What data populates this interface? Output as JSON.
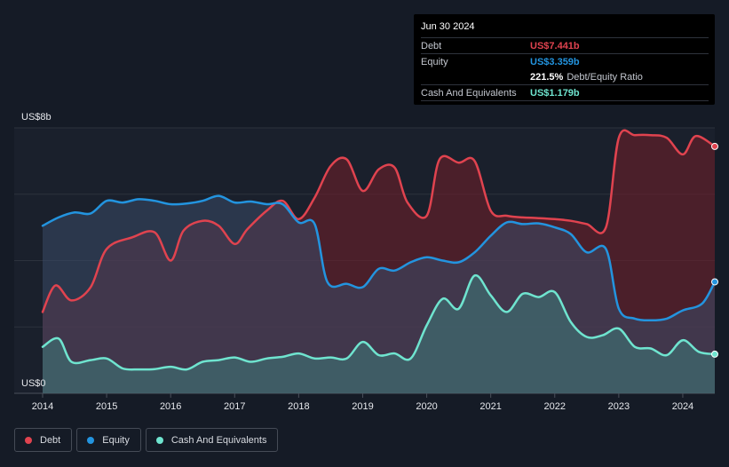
{
  "tooltip": {
    "date": "Jun 30 2024",
    "debt_label": "Debt",
    "debt_value": "US$7.441b",
    "equity_label": "Equity",
    "equity_value": "US$3.359b",
    "ratio_value": "221.5%",
    "ratio_label": "Debt/Equity Ratio",
    "cash_label": "Cash And Equivalents",
    "cash_value": "US$1.179b"
  },
  "legend": {
    "debt": "Debt",
    "equity": "Equity",
    "cash": "Cash And Equivalents"
  },
  "colors": {
    "debt": "#e0434f",
    "equity": "#2394df",
    "cash": "#6fe4cf"
  },
  "chart_data": {
    "type": "area",
    "title": "",
    "xlabel": "",
    "ylabel": "",
    "y_top_label": "US$8b",
    "y_bottom_label": "US$0",
    "ylim": [
      0,
      8
    ],
    "xlim": [
      2014,
      2024.5
    ],
    "x_ticks": [
      2014,
      2015,
      2016,
      2017,
      2018,
      2019,
      2020,
      2021,
      2022,
      2023,
      2024
    ],
    "x_tick_labels": [
      "2014",
      "2015",
      "2016",
      "2017",
      "2018",
      "2019",
      "2020",
      "2021",
      "2022",
      "2023",
      "2024"
    ],
    "grid": true,
    "legend_position": "bottom-left",
    "series": [
      {
        "name": "Debt",
        "points": [
          [
            2014.0,
            2.45
          ],
          [
            2014.2,
            3.25
          ],
          [
            2014.45,
            2.8
          ],
          [
            2014.75,
            3.2
          ],
          [
            2015.0,
            4.35
          ],
          [
            2015.4,
            4.7
          ],
          [
            2015.75,
            4.85
          ],
          [
            2016.0,
            4.0
          ],
          [
            2016.2,
            4.9
          ],
          [
            2016.5,
            5.2
          ],
          [
            2016.75,
            5.05
          ],
          [
            2017.0,
            4.5
          ],
          [
            2017.2,
            4.95
          ],
          [
            2017.5,
            5.5
          ],
          [
            2017.75,
            5.8
          ],
          [
            2018.0,
            5.25
          ],
          [
            2018.25,
            5.9
          ],
          [
            2018.5,
            6.85
          ],
          [
            2018.75,
            7.05
          ],
          [
            2019.0,
            6.1
          ],
          [
            2019.25,
            6.75
          ],
          [
            2019.5,
            6.8
          ],
          [
            2019.7,
            5.75
          ],
          [
            2020.0,
            5.35
          ],
          [
            2020.2,
            7.05
          ],
          [
            2020.5,
            6.95
          ],
          [
            2020.75,
            7.0
          ],
          [
            2021.0,
            5.5
          ],
          [
            2021.25,
            5.35
          ],
          [
            2021.5,
            5.3
          ],
          [
            2021.75,
            5.28
          ],
          [
            2022.0,
            5.25
          ],
          [
            2022.25,
            5.2
          ],
          [
            2022.5,
            5.1
          ],
          [
            2022.8,
            5.0
          ],
          [
            2023.0,
            7.7
          ],
          [
            2023.25,
            7.78
          ],
          [
            2023.5,
            7.78
          ],
          [
            2023.75,
            7.7
          ],
          [
            2024.0,
            7.2
          ],
          [
            2024.2,
            7.75
          ],
          [
            2024.5,
            7.441
          ]
        ]
      },
      {
        "name": "Equity",
        "points": [
          [
            2014.0,
            5.05
          ],
          [
            2014.25,
            5.3
          ],
          [
            2014.5,
            5.45
          ],
          [
            2014.75,
            5.42
          ],
          [
            2015.0,
            5.8
          ],
          [
            2015.25,
            5.75
          ],
          [
            2015.5,
            5.85
          ],
          [
            2015.75,
            5.8
          ],
          [
            2016.0,
            5.7
          ],
          [
            2016.25,
            5.72
          ],
          [
            2016.5,
            5.8
          ],
          [
            2016.75,
            5.95
          ],
          [
            2017.0,
            5.75
          ],
          [
            2017.25,
            5.78
          ],
          [
            2017.5,
            5.7
          ],
          [
            2017.75,
            5.7
          ],
          [
            2018.0,
            5.15
          ],
          [
            2018.25,
            5.1
          ],
          [
            2018.45,
            3.35
          ],
          [
            2018.75,
            3.3
          ],
          [
            2019.0,
            3.2
          ],
          [
            2019.25,
            3.75
          ],
          [
            2019.5,
            3.7
          ],
          [
            2019.75,
            3.95
          ],
          [
            2020.0,
            4.1
          ],
          [
            2020.25,
            4.0
          ],
          [
            2020.5,
            3.95
          ],
          [
            2020.75,
            4.25
          ],
          [
            2021.0,
            4.75
          ],
          [
            2021.25,
            5.15
          ],
          [
            2021.5,
            5.1
          ],
          [
            2021.75,
            5.12
          ],
          [
            2022.0,
            5.0
          ],
          [
            2022.25,
            4.8
          ],
          [
            2022.5,
            4.25
          ],
          [
            2022.8,
            4.35
          ],
          [
            2023.0,
            2.55
          ],
          [
            2023.25,
            2.25
          ],
          [
            2023.5,
            2.2
          ],
          [
            2023.75,
            2.25
          ],
          [
            2024.0,
            2.5
          ],
          [
            2024.3,
            2.7
          ],
          [
            2024.5,
            3.359
          ]
        ]
      },
      {
        "name": "Cash And Equivalents",
        "points": [
          [
            2014.0,
            1.4
          ],
          [
            2014.25,
            1.65
          ],
          [
            2014.45,
            0.95
          ],
          [
            2014.75,
            1.0
          ],
          [
            2015.0,
            1.05
          ],
          [
            2015.25,
            0.75
          ],
          [
            2015.5,
            0.72
          ],
          [
            2015.75,
            0.73
          ],
          [
            2016.0,
            0.8
          ],
          [
            2016.25,
            0.72
          ],
          [
            2016.5,
            0.95
          ],
          [
            2016.75,
            1.0
          ],
          [
            2017.0,
            1.08
          ],
          [
            2017.25,
            0.95
          ],
          [
            2017.5,
            1.05
          ],
          [
            2017.75,
            1.1
          ],
          [
            2018.0,
            1.2
          ],
          [
            2018.25,
            1.05
          ],
          [
            2018.5,
            1.08
          ],
          [
            2018.75,
            1.05
          ],
          [
            2019.0,
            1.55
          ],
          [
            2019.25,
            1.15
          ],
          [
            2019.5,
            1.2
          ],
          [
            2019.75,
            1.05
          ],
          [
            2020.0,
            2.05
          ],
          [
            2020.25,
            2.85
          ],
          [
            2020.5,
            2.55
          ],
          [
            2020.75,
            3.55
          ],
          [
            2021.0,
            2.95
          ],
          [
            2021.25,
            2.45
          ],
          [
            2021.5,
            3.0
          ],
          [
            2021.75,
            2.9
          ],
          [
            2022.0,
            3.05
          ],
          [
            2022.25,
            2.15
          ],
          [
            2022.5,
            1.7
          ],
          [
            2022.75,
            1.75
          ],
          [
            2023.0,
            1.95
          ],
          [
            2023.25,
            1.4
          ],
          [
            2023.5,
            1.35
          ],
          [
            2023.75,
            1.15
          ],
          [
            2024.0,
            1.6
          ],
          [
            2024.25,
            1.25
          ],
          [
            2024.5,
            1.179
          ]
        ]
      }
    ]
  }
}
